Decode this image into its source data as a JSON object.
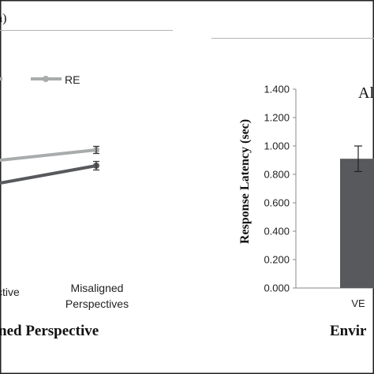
{
  "left_panel": {
    "panel_tag": "a)",
    "legend_label": "RE",
    "x_tick_labels": [
      "ctive",
      "Misaligned\nPerspectives"
    ],
    "x_axis_title": "ned Perspective"
  },
  "right_panel": {
    "panel_tag": "Al",
    "x_axis_title": "Envir"
  },
  "chart_data": [
    {
      "type": "line",
      "title": "",
      "xlabel": "ned Perspective",
      "ylabel": "",
      "categories": [
        "ctive",
        "Misaligned Perspectives"
      ],
      "grid": false,
      "legend": "top",
      "series": [
        {
          "name": "",
          "values": [
            null,
            0.88
          ],
          "error": [
            null,
            0.03
          ],
          "color": "#57595c"
        },
        {
          "name": "RE",
          "values": [
            null,
            0.99
          ],
          "error": [
            null,
            0.025
          ],
          "color": "#a9acad"
        }
      ]
    },
    {
      "type": "bar",
      "title": "",
      "xlabel": "Envir",
      "ylabel": "Response Latency (sec)",
      "categories": [
        "VE"
      ],
      "values": [
        0.91
      ],
      "error": [
        0.09
      ],
      "ylim": [
        0,
        1.4
      ],
      "y_ticks": [
        "0.000",
        "0.200",
        "0.400",
        "0.600",
        "0.800",
        "1.000",
        "1.200",
        "1.400"
      ],
      "grid": false,
      "bar_color": "#57595c"
    }
  ]
}
